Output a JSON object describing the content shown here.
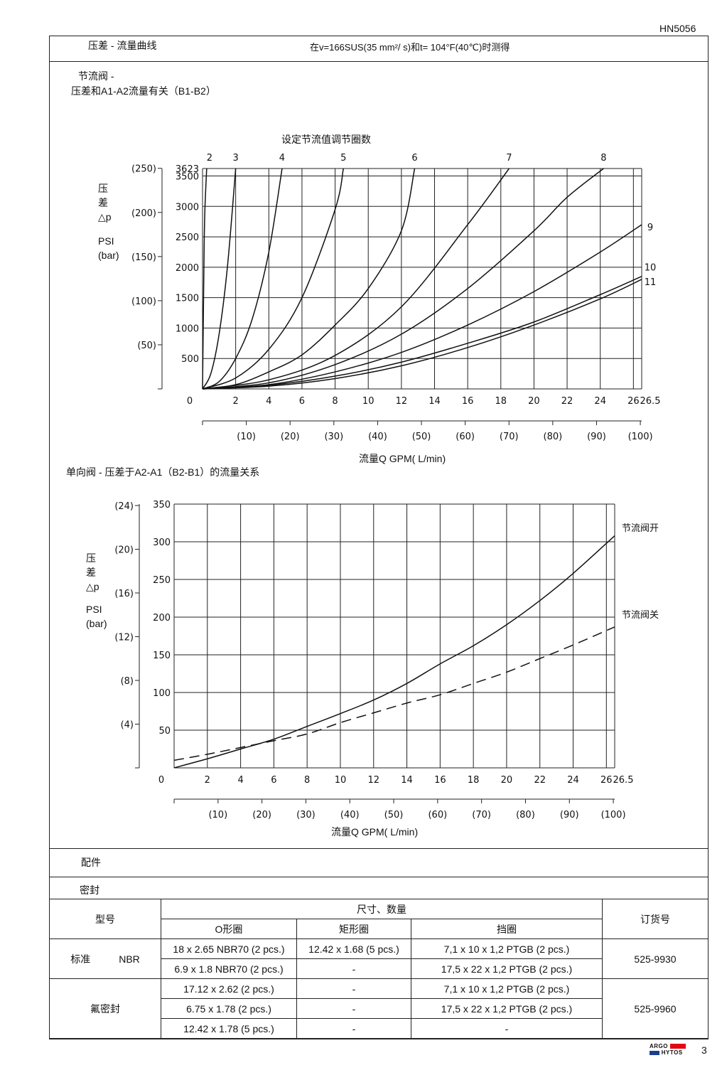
{
  "doc_code": "HN5056",
  "page_number": "3",
  "brand": {
    "line1": "ARGO",
    "line2": "HYTOS",
    "color": "#e30613"
  },
  "section": {
    "title": "压差 - 流量曲线",
    "condition": "在v=166SUS(35 mm²/ s)和t= 104°F(40℃)时测得"
  },
  "chart1": {
    "heading_line1": "节流阀 -",
    "heading_line2": "压差和A1-A2流量有关（B1-B2）",
    "caption": "设定节流值调节圈数",
    "ylabel": [
      "压",
      "差",
      "△p",
      "PSI",
      "(bar)"
    ],
    "xlabel": "流量Q  GPM( L/min)"
  },
  "chart2": {
    "heading": "单向阀 - 压差于A2-A1（B2-B1）的流量关系",
    "ylabel": [
      "压",
      "差",
      "△p",
      "PSI",
      "(bar)"
    ],
    "xlabel": "流量Q  GPM( L/min)"
  },
  "chart_data": [
    {
      "type": "line",
      "title": "设定节流值调节圈数",
      "xlabel": "流量Q  GPM( L/min)",
      "ylabel": "压差 △p PSI (bar)",
      "x_ticks_gpm": [
        "0",
        "2",
        "4",
        "6",
        "8",
        "10",
        "12",
        "14",
        "16",
        "18",
        "20",
        "22",
        "24",
        "26",
        "26.5"
      ],
      "x_ticks_lmin": [
        "(10)",
        "(20)",
        "(30)",
        "(40)",
        "(50)",
        "(60)",
        "(70)",
        "(80)",
        "(90)",
        "(100)"
      ],
      "y_ticks_psi": [
        "500",
        "1000",
        "1500",
        "2000",
        "2500",
        "3000",
        "3500",
        "3623"
      ],
      "y_ticks_bar": [
        "(50)",
        "(100)",
        "(150)",
        "(200)",
        "(250)"
      ],
      "xlim": [
        0,
        26.5
      ],
      "ylim": [
        0,
        3623
      ],
      "grid": true,
      "series": [
        {
          "name": "2",
          "x": [
            0,
            0.05,
            0.1,
            0.15,
            0.25
          ],
          "y": [
            0,
            1200,
            2400,
            3000,
            3623
          ]
        },
        {
          "name": "3",
          "x": [
            0,
            0.5,
            1,
            1.5,
            2
          ],
          "y": [
            0,
            250,
            900,
            2000,
            3623
          ]
        },
        {
          "name": "4",
          "x": [
            0,
            1,
            2,
            3,
            4,
            4.8
          ],
          "y": [
            0,
            120,
            500,
            1150,
            2250,
            3623
          ]
        },
        {
          "name": "5",
          "x": [
            0,
            2,
            4,
            6,
            8,
            8.5
          ],
          "y": [
            0,
            180,
            650,
            1500,
            2950,
            3623
          ]
        },
        {
          "name": "6",
          "x": [
            0,
            2,
            4,
            6,
            8,
            10,
            12,
            12.8
          ],
          "y": [
            0,
            70,
            280,
            560,
            1050,
            1650,
            2600,
            3623
          ]
        },
        {
          "name": "7",
          "x": [
            0,
            4,
            8,
            12,
            16,
            18.5
          ],
          "y": [
            0,
            150,
            550,
            1350,
            2700,
            3623
          ]
        },
        {
          "name": "8",
          "x": [
            0,
            4,
            8,
            12,
            16,
            20,
            22,
            24.2
          ],
          "y": [
            0,
            100,
            400,
            900,
            1650,
            2600,
            3150,
            3623
          ]
        },
        {
          "name": "9",
          "x": [
            0,
            4,
            8,
            12,
            16,
            20,
            24,
            26.5
          ],
          "y": [
            0,
            70,
            280,
            600,
            1050,
            1600,
            2250,
            2700
          ]
        },
        {
          "name": "10",
          "x": [
            0,
            4,
            8,
            12,
            16,
            20,
            24,
            26.5
          ],
          "y": [
            0,
            60,
            210,
            440,
            750,
            1100,
            1550,
            1850
          ]
        },
        {
          "name": "11",
          "x": [
            0,
            4,
            8,
            12,
            16,
            20,
            24,
            26.5
          ],
          "y": [
            0,
            45,
            170,
            380,
            680,
            1050,
            1480,
            1800
          ]
        }
      ]
    },
    {
      "type": "line",
      "xlabel": "流量Q  GPM( L/min)",
      "ylabel": "压差 △p PSI (bar)",
      "x_ticks_gpm": [
        "0",
        "2",
        "4",
        "6",
        "8",
        "10",
        "12",
        "14",
        "16",
        "18",
        "20",
        "22",
        "24",
        "26",
        "26.5"
      ],
      "x_ticks_lmin": [
        "(10)",
        "(20)",
        "(30)",
        "(40)",
        "(50)",
        "(60)",
        "(70)",
        "(80)",
        "(90)",
        "(100)"
      ],
      "y_ticks_psi": [
        "50",
        "100",
        "150",
        "200",
        "250",
        "300",
        "350"
      ],
      "y_ticks_bar": [
        "(4)",
        "(8)",
        "(12)",
        "(16)",
        "(20)",
        "(24)"
      ],
      "xlim": [
        0,
        26.5
      ],
      "ylim": [
        0,
        350
      ],
      "grid": true,
      "series": [
        {
          "name": "节流阀开",
          "style": "solid",
          "x": [
            0,
            2,
            4,
            6,
            8,
            10,
            12,
            14,
            16,
            18,
            20,
            22,
            24,
            26.5
          ],
          "y": [
            0,
            12,
            25,
            38,
            55,
            72,
            90,
            112,
            138,
            162,
            190,
            222,
            258,
            308
          ]
        },
        {
          "name": "节流阀关",
          "style": "dashed",
          "x": [
            0,
            2,
            4,
            6,
            8,
            10,
            12,
            14,
            16,
            18,
            20,
            22,
            24,
            26.5
          ],
          "y": [
            10,
            18,
            27,
            36,
            45,
            60,
            73,
            86,
            97,
            112,
            127,
            145,
            163,
            187
          ]
        }
      ]
    }
  ],
  "accessories_label": "配件",
  "seals": {
    "label": "密封",
    "header": {
      "type": "型号",
      "size_qty": "尺寸、数量",
      "order_no": "订货号",
      "oring": "O形圈",
      "rect_ring": "矩形圈",
      "backup": "挡圈"
    },
    "groups": [
      {
        "label": "标准",
        "material": "NBR",
        "order_no": "525-9930",
        "rows": [
          [
            "18 x 2.65 NBR70 (2 pcs.)",
            "12.42 x 1.68 (5 pcs.)",
            "7,1 x 10 x 1,2 PTGB  (2 pcs.)"
          ],
          [
            "6.9 x 1.8 NBR70 (2 pcs.)",
            "-",
            "17,5 x 22 x 1,2  PTGB (2 pcs.)"
          ]
        ]
      },
      {
        "label": "氟密封",
        "material": "",
        "order_no": "525-9960",
        "rows": [
          [
            "17.12 x 2.62 (2 pcs.)",
            "-",
            "7,1 x 10 x 1,2 PTGB  (2 pcs.)"
          ],
          [
            "6.75 x 1.78 (2 pcs.)",
            "-",
            "17,5 x 22 x 1,2  PTGB (2 pcs.)"
          ],
          [
            "12.42 x 1.78 (5 pcs.)",
            "-",
            "-"
          ]
        ]
      }
    ]
  }
}
